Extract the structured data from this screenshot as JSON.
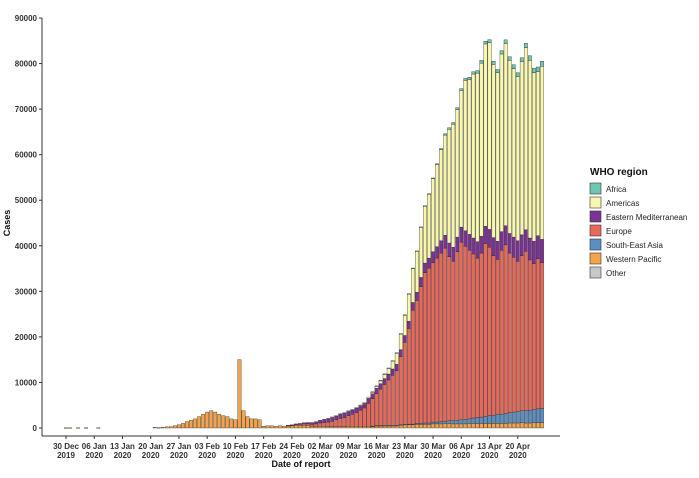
{
  "chart_data": {
    "type": "bar",
    "stacked": true,
    "xlabel": "Date of report",
    "ylabel": "Cases",
    "ylim": [
      0,
      90000
    ],
    "yticks": [
      0,
      10000,
      20000,
      30000,
      40000,
      50000,
      60000,
      70000,
      80000,
      90000
    ],
    "x_start": "2019-12-30",
    "x_ticks": [
      {
        "line1": "30 Dec",
        "line2": "2019"
      },
      {
        "line1": "06 Jan",
        "line2": "2020"
      },
      {
        "line1": "13 Jan",
        "line2": "2020"
      },
      {
        "line1": "20 Jan",
        "line2": "2020"
      },
      {
        "line1": "27 Jan",
        "line2": "2020"
      },
      {
        "line1": "03 Feb",
        "line2": "2020"
      },
      {
        "line1": "10 Feb",
        "line2": "2020"
      },
      {
        "line1": "17 Feb",
        "line2": "2020"
      },
      {
        "line1": "24 Feb",
        "line2": "2020"
      },
      {
        "line1": "02 Mar",
        "line2": "2020"
      },
      {
        "line1": "09 Mar",
        "line2": "2020"
      },
      {
        "line1": "16 Mar",
        "line2": "2020"
      },
      {
        "line1": "23 Mar",
        "line2": "2020"
      },
      {
        "line1": "30 Mar",
        "line2": "2020"
      },
      {
        "line1": "06 Apr",
        "line2": "2020"
      },
      {
        "line1": "13 Apr",
        "line2": "2020"
      },
      {
        "line1": "20 Apr",
        "line2": "2020"
      }
    ],
    "legend": {
      "title": "WHO region",
      "position": "right",
      "entries": [
        {
          "name": "Africa",
          "color": "#6fc7b2"
        },
        {
          "name": "Americas",
          "color": "#f7f7b0"
        },
        {
          "name": "Eastern Mediterranean",
          "color": "#7b3294"
        },
        {
          "name": "Europe",
          "color": "#e8685a"
        },
        {
          "name": "South-East Asia",
          "color": "#5b8fc2"
        },
        {
          "name": "Western Pacific",
          "color": "#f4a24b"
        },
        {
          "name": "Other",
          "color": "#c8c8c8"
        }
      ]
    },
    "series": [
      {
        "name": "Western Pacific",
        "values": [
          50,
          50,
          0,
          50,
          0,
          50,
          0,
          0,
          50,
          0,
          0,
          0,
          0,
          0,
          0,
          0,
          0,
          0,
          0,
          0,
          0,
          0,
          150,
          100,
          150,
          250,
          300,
          500,
          700,
          1000,
          1400,
          1700,
          2000,
          2500,
          3000,
          3500,
          3800,
          3500,
          3000,
          2700,
          2500,
          2000,
          1800,
          15000,
          3800,
          2500,
          2000,
          2000,
          1800,
          400,
          500,
          500,
          400,
          500,
          400,
          500,
          500,
          600,
          600,
          600,
          600,
          400,
          400,
          400,
          400,
          300,
          300,
          300,
          300,
          300,
          400,
          400,
          400,
          400,
          400,
          400,
          400,
          500,
          500,
          500,
          500,
          500,
          500,
          600,
          700,
          700,
          700,
          800,
          800,
          800,
          800,
          900,
          900,
          900,
          1000,
          1000,
          900,
          900,
          900,
          900,
          1000,
          1000,
          1000,
          1000,
          1000,
          1000,
          1000,
          1000,
          1000,
          1000,
          1100,
          1100,
          1100,
          1200,
          1100,
          1100,
          1200,
          1200,
          1200
        ]
      },
      {
        "name": "South-East Asia",
        "values": [
          0,
          0,
          0,
          0,
          0,
          0,
          0,
          0,
          0,
          0,
          0,
          0,
          0,
          0,
          0,
          0,
          0,
          0,
          0,
          0,
          0,
          0,
          0,
          0,
          0,
          0,
          0,
          0,
          0,
          0,
          0,
          0,
          0,
          0,
          0,
          0,
          0,
          0,
          0,
          0,
          0,
          0,
          0,
          0,
          0,
          0,
          0,
          0,
          0,
          0,
          0,
          0,
          0,
          0,
          0,
          0,
          0,
          0,
          0,
          0,
          0,
          0,
          0,
          0,
          0,
          0,
          0,
          0,
          0,
          0,
          0,
          0,
          0,
          0,
          0,
          0,
          20,
          30,
          40,
          50,
          50,
          60,
          80,
          100,
          100,
          150,
          150,
          200,
          250,
          300,
          300,
          400,
          400,
          500,
          500,
          600,
          700,
          800,
          900,
          1000,
          1000,
          1200,
          1300,
          1400,
          1500,
          1700,
          1800,
          2000,
          2000,
          2200,
          2300,
          2400,
          2500,
          2600,
          2700,
          2800,
          2900,
          3000,
          3100
        ]
      },
      {
        "name": "Europe",
        "values": [
          0,
          0,
          0,
          0,
          0,
          0,
          0,
          0,
          0,
          0,
          0,
          0,
          0,
          0,
          0,
          0,
          0,
          0,
          0,
          0,
          0,
          0,
          0,
          0,
          0,
          0,
          0,
          0,
          0,
          0,
          0,
          0,
          0,
          0,
          0,
          0,
          0,
          0,
          0,
          0,
          0,
          0,
          0,
          0,
          0,
          0,
          0,
          0,
          0,
          0,
          0,
          0,
          0,
          0,
          0,
          50,
          100,
          150,
          200,
          300,
          300,
          400,
          500,
          700,
          800,
          1000,
          1200,
          1500,
          1800,
          2000,
          2300,
          2600,
          3000,
          3500,
          4000,
          5000,
          6000,
          7000,
          8000,
          9000,
          10000,
          11000,
          12000,
          15000,
          18000,
          21000,
          25000,
          27000,
          30000,
          33000,
          34000,
          35000,
          36000,
          37000,
          38000,
          36000,
          35000,
          37000,
          39000,
          38000,
          37000,
          36000,
          35000,
          36000,
          38000,
          37000,
          35000,
          34000,
          36000,
          37000,
          35000,
          34000,
          33000,
          34000,
          35000,
          33000,
          32000,
          33000,
          32000
        ]
      },
      {
        "name": "Eastern Mediterranean",
        "values": [
          0,
          0,
          0,
          0,
          0,
          0,
          0,
          0,
          0,
          0,
          0,
          0,
          0,
          0,
          0,
          0,
          0,
          0,
          0,
          0,
          0,
          0,
          0,
          0,
          0,
          0,
          0,
          0,
          0,
          0,
          0,
          0,
          0,
          0,
          0,
          0,
          0,
          0,
          0,
          0,
          0,
          0,
          0,
          0,
          0,
          0,
          0,
          0,
          0,
          0,
          0,
          0,
          0,
          0,
          0,
          50,
          100,
          150,
          200,
          250,
          300,
          400,
          500,
          600,
          700,
          800,
          900,
          900,
          1000,
          1000,
          1000,
          1000,
          1000,
          1000,
          1000,
          1100,
          1100,
          1200,
          1200,
          1300,
          1300,
          1400,
          1400,
          1500,
          1500,
          1600,
          1700,
          1800,
          2000,
          2100,
          2200,
          2400,
          2500,
          2700,
          2800,
          3000,
          3100,
          3200,
          3300,
          3400,
          3500,
          3500,
          3600,
          3700,
          3800,
          3900,
          4000,
          4000,
          4100,
          4200,
          4300,
          4400,
          4500,
          4600,
          4700,
          4800,
          4900,
          5000,
          5100
        ]
      },
      {
        "name": "Americas",
        "values": [
          0,
          0,
          0,
          0,
          0,
          0,
          0,
          0,
          0,
          0,
          0,
          0,
          0,
          0,
          0,
          0,
          0,
          0,
          0,
          0,
          0,
          0,
          0,
          0,
          0,
          0,
          0,
          0,
          0,
          0,
          0,
          0,
          0,
          0,
          0,
          0,
          0,
          0,
          0,
          0,
          0,
          0,
          0,
          0,
          0,
          0,
          0,
          0,
          0,
          0,
          0,
          0,
          0,
          0,
          0,
          0,
          0,
          0,
          0,
          0,
          0,
          0,
          0,
          0,
          0,
          0,
          20,
          30,
          40,
          50,
          60,
          80,
          100,
          150,
          200,
          300,
          400,
          500,
          700,
          1000,
          1300,
          1800,
          2500,
          3500,
          4500,
          6000,
          7500,
          9000,
          11000,
          12500,
          14000,
          16000,
          18000,
          20000,
          22000,
          25000,
          27000,
          28000,
          30000,
          33000,
          34000,
          36000,
          37000,
          38000,
          40000,
          41000,
          38000,
          37000,
          39000,
          40000,
          38000,
          37000,
          36000,
          38000,
          40000,
          39000,
          37000,
          36000,
          38000
        ]
      },
      {
        "name": "Africa",
        "values": [
          0,
          0,
          0,
          0,
          0,
          0,
          0,
          0,
          0,
          0,
          0,
          0,
          0,
          0,
          0,
          0,
          0,
          0,
          0,
          0,
          0,
          0,
          0,
          0,
          0,
          0,
          0,
          0,
          0,
          0,
          0,
          0,
          0,
          0,
          0,
          0,
          0,
          0,
          0,
          0,
          0,
          0,
          0,
          0,
          0,
          0,
          0,
          0,
          0,
          0,
          0,
          0,
          0,
          0,
          0,
          0,
          0,
          0,
          0,
          0,
          0,
          0,
          0,
          0,
          0,
          0,
          0,
          0,
          0,
          0,
          0,
          0,
          0,
          0,
          0,
          0,
          10,
          10,
          10,
          20,
          20,
          20,
          30,
          30,
          40,
          50,
          60,
          80,
          100,
          120,
          150,
          180,
          200,
          250,
          300,
          300,
          350,
          400,
          400,
          450,
          500,
          500,
          550,
          600,
          600,
          650,
          700,
          700,
          750,
          800,
          800,
          850,
          900,
          900,
          950,
          1000,
          1000,
          1050,
          1100
        ]
      },
      {
        "name": "Other",
        "values": [
          0,
          0,
          0,
          0,
          0,
          0,
          0,
          0,
          0,
          0,
          0,
          0,
          0,
          0,
          0,
          0,
          0,
          0,
          0,
          0,
          0,
          0,
          0,
          0,
          0,
          0,
          0,
          0,
          0,
          0,
          0,
          0,
          0,
          0,
          0,
          0,
          0,
          0,
          0,
          0,
          0,
          0,
          0,
          0,
          0,
          0,
          0,
          0,
          0,
          0,
          0,
          0,
          0,
          0,
          0,
          0,
          0,
          0,
          0,
          0,
          0,
          0,
          0,
          0,
          0,
          0,
          0,
          0,
          0,
          0,
          0,
          0,
          0,
          0,
          0,
          0,
          0,
          0,
          0,
          0,
          0,
          0,
          0,
          0,
          0,
          0,
          0,
          0,
          0,
          0,
          0,
          0,
          0,
          0,
          0,
          0,
          0,
          0,
          0,
          0,
          0,
          0,
          0,
          0,
          0,
          0,
          0,
          0,
          0,
          0,
          0,
          0,
          0,
          0,
          0,
          0,
          0,
          0,
          0
        ]
      }
    ]
  }
}
